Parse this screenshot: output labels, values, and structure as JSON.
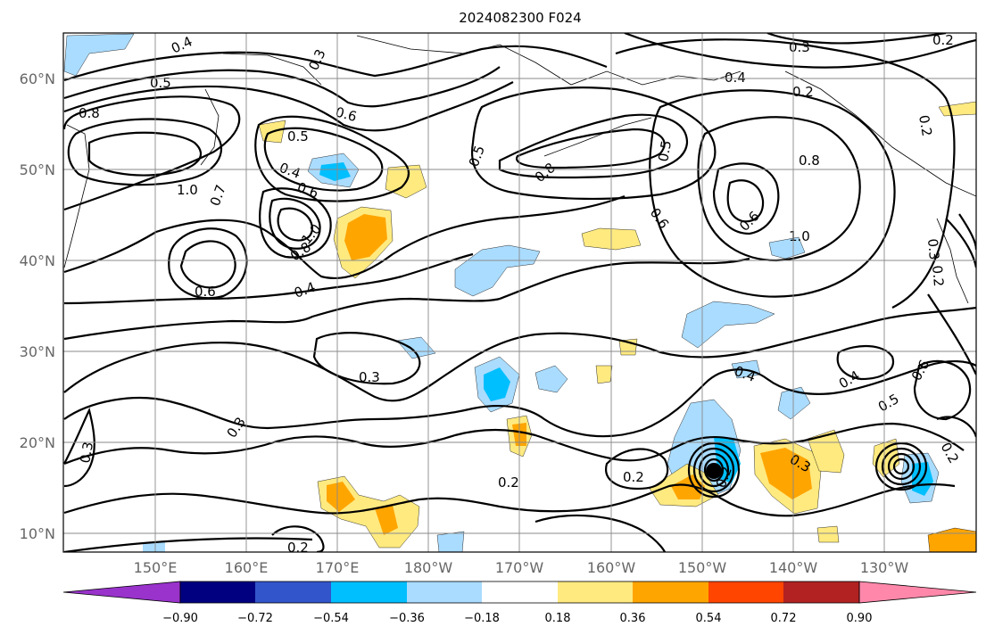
{
  "title": "2024082300 F024",
  "map": {
    "lat_labels": [
      "60°N",
      "50°N",
      "40°N",
      "30°N",
      "20°N",
      "10°N"
    ],
    "lon_labels": [
      "150°E",
      "160°E",
      "170°E",
      "180°W",
      "170°W",
      "160°W",
      "150°W",
      "140°W",
      "130°W"
    ],
    "contour_labels": [
      "0.4",
      "0.5",
      "0.8",
      "0.3",
      "0.6",
      "1.0",
      "0.5",
      "0.4",
      "0.6",
      "0.7",
      "0.8",
      "1.0",
      "0.6",
      "0.4",
      "0.3",
      "0.3",
      "0.2",
      "0.2",
      "0.2",
      "0.3",
      "0.4",
      "0.5",
      "0.6",
      "0.8",
      "1.0",
      "0.6",
      "0.5",
      "0.8",
      "0.2",
      "0.3",
      "0.4",
      "0.2",
      "0.3",
      "0.4",
      "0.5",
      "0.6",
      "0.2",
      "0.3",
      "0.2",
      "0.2",
      "0.2"
    ],
    "colors": {
      "purple": "#9933cc",
      "navy": "#000080",
      "blue": "#3355cc",
      "cyan": "#00bfff",
      "lightblue": "#aadcff",
      "white": "#ffffff",
      "lightyellow": "#ffea80",
      "orange": "#ffa500",
      "redorange": "#ff4500",
      "darkred": "#b22222",
      "pink": "#ff88aa"
    }
  },
  "colorbar": {
    "ticks": [
      "−0.90",
      "−0.72",
      "−0.54",
      "−0.36",
      "−0.18",
      "0.18",
      "0.36",
      "0.54",
      "0.72",
      "0.90"
    ]
  }
}
